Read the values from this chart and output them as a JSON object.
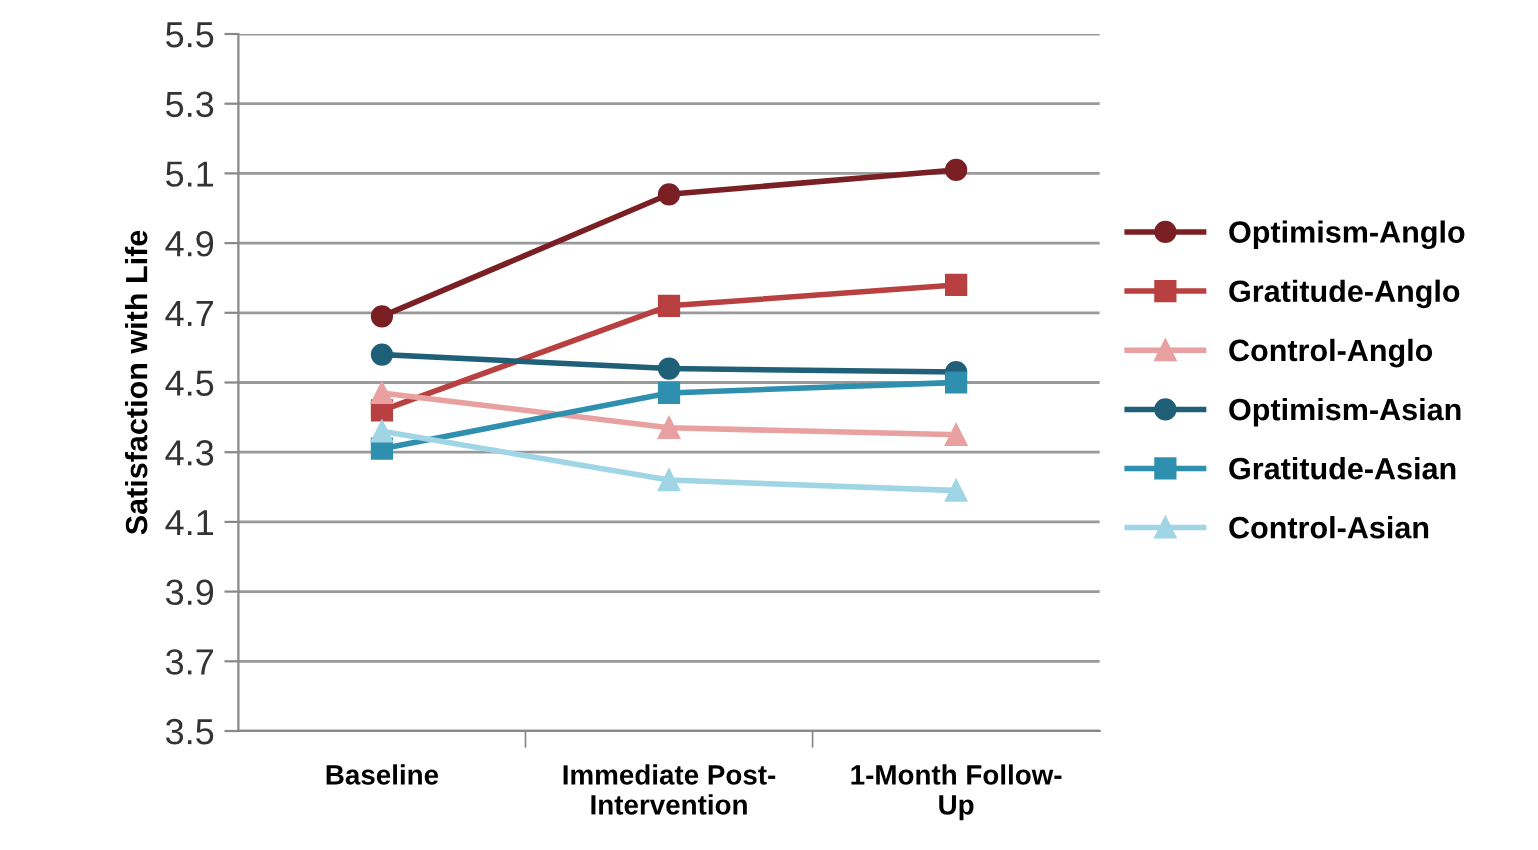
{
  "chart_data": {
    "type": "line",
    "ylabel": "Satisfaction with Life",
    "categories": [
      "Baseline",
      "Immediate Post-\nIntervention",
      "1-Month Follow-\nUp"
    ],
    "series": [
      {
        "name": "Optimism-Anglo",
        "color": "#7a1f24",
        "marker": "circle",
        "values": [
          4.69,
          5.04,
          5.11
        ]
      },
      {
        "name": "Gratitude-Anglo",
        "color": "#b84040",
        "marker": "square",
        "values": [
          4.42,
          4.72,
          4.78
        ]
      },
      {
        "name": "Control-Anglo",
        "color": "#e8a0a0",
        "marker": "triangle",
        "values": [
          4.47,
          4.37,
          4.35
        ]
      },
      {
        "name": "Optimism-Asian",
        "color": "#1f5f78",
        "marker": "circle",
        "values": [
          4.58,
          4.54,
          4.53
        ]
      },
      {
        "name": "Gratitude-Asian",
        "color": "#2f8fae",
        "marker": "square",
        "values": [
          4.31,
          4.47,
          4.5
        ]
      },
      {
        "name": "Control-Asian",
        "color": "#9fd5e5",
        "marker": "triangle",
        "values": [
          4.36,
          4.22,
          4.19
        ]
      }
    ],
    "ylim": [
      3.5,
      5.5
    ],
    "yticks": [
      3.5,
      3.7,
      3.9,
      4.1,
      4.3,
      4.5,
      4.7,
      4.9,
      5.1,
      5.3,
      5.5
    ],
    "grid": "y",
    "legend": "right"
  }
}
